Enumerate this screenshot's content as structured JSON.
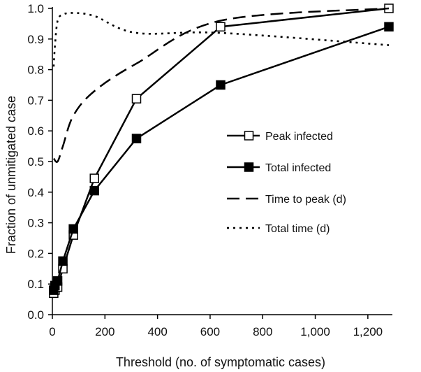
{
  "chart_data": {
    "type": "line",
    "title": "",
    "xlabel": "Threshold (no. of symptomatic cases)",
    "ylabel": "Fraction of unmitigated case",
    "xlim": [
      0,
      1280
    ],
    "ylim": [
      0,
      1.0
    ],
    "xticks": [
      0,
      200,
      400,
      600,
      800,
      1000,
      1200
    ],
    "xtick_labels": [
      "0",
      "200",
      "400",
      "600",
      "800",
      "1,000",
      "1,200"
    ],
    "yticks": [
      0,
      0.1,
      0.2,
      0.3,
      0.4,
      0.5,
      0.6,
      0.7,
      0.8,
      0.9,
      1.0
    ],
    "ytick_labels": [
      "0.0",
      "0.1",
      "0.2",
      "0.3",
      "0.4",
      "0.5",
      "0.6",
      "0.7",
      "0.8",
      "0.9",
      "1.0"
    ],
    "grid": false,
    "legend_position": "right-middle",
    "series": [
      {
        "name": "Peak infected",
        "style": "solid",
        "marker": "open-square",
        "x": [
          5,
          10,
          20,
          40,
          80,
          160,
          320,
          640,
          1280
        ],
        "y": [
          0.07,
          0.08,
          0.09,
          0.15,
          0.26,
          0.445,
          0.705,
          0.94,
          1.0
        ]
      },
      {
        "name": "Total infected",
        "style": "solid",
        "marker": "filled-square",
        "x": [
          5,
          10,
          20,
          40,
          80,
          160,
          320,
          640,
          1280
        ],
        "y": [
          0.08,
          0.095,
          0.11,
          0.175,
          0.28,
          0.405,
          0.575,
          0.75,
          0.94
        ]
      },
      {
        "name": "Time to peak (d)",
        "style": "dashed",
        "marker": "none",
        "x": [
          5,
          20,
          40,
          80,
          160,
          320,
          640,
          1280
        ],
        "y": [
          0.51,
          0.5,
          0.55,
          0.65,
          0.73,
          0.82,
          0.96,
          1.0
        ]
      },
      {
        "name": "Total time (d)",
        "style": "dotted",
        "marker": "none",
        "x": [
          5,
          10,
          20,
          40,
          80,
          160,
          320,
          640,
          1280
        ],
        "y": [
          0.81,
          0.88,
          0.96,
          0.98,
          0.985,
          0.975,
          0.92,
          0.92,
          0.88
        ]
      }
    ]
  }
}
